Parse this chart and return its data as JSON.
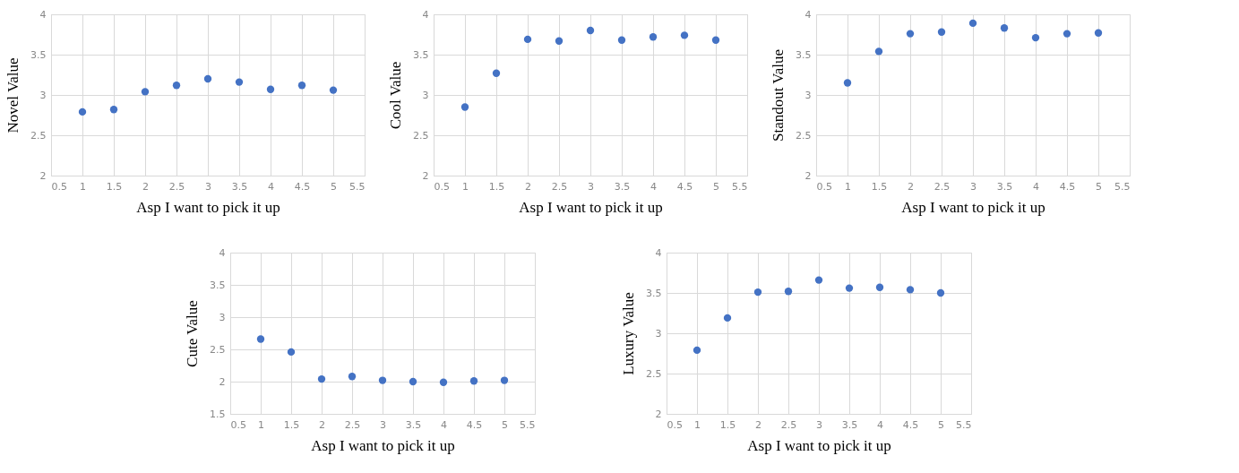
{
  "chart_data": [
    {
      "type": "scatter",
      "xlabel": "Asp I want to pick it up",
      "ylabel": "Novel Value",
      "x": [
        1,
        1.5,
        2,
        2.5,
        3,
        3.5,
        4,
        4.5,
        5
      ],
      "series": [
        {
          "color": "#4472c4",
          "values": [
            2.79,
            2.82,
            3.04,
            3.12,
            3.2,
            3.16,
            3.07,
            3.12,
            3.06
          ]
        }
      ],
      "xlim": [
        0.5,
        5.5
      ],
      "xticks": [
        0.5,
        1,
        1.5,
        2,
        2.5,
        3,
        3.5,
        4,
        4.5,
        5,
        5.5
      ],
      "ylim": [
        2,
        4
      ],
      "yticks": [
        2,
        2.5,
        3,
        3.5,
        4
      ],
      "grid": true,
      "marker": "circle"
    },
    {
      "type": "scatter",
      "xlabel": "Asp I want to pick it up",
      "ylabel": "Cool Value",
      "x": [
        1,
        1.5,
        2,
        2.5,
        3,
        3.5,
        4,
        4.5,
        5
      ],
      "series": [
        {
          "color": "#4472c4",
          "values": [
            2.85,
            3.27,
            3.69,
            3.67,
            3.8,
            3.68,
            3.72,
            3.74,
            3.68
          ]
        }
      ],
      "xlim": [
        0.5,
        5.5
      ],
      "xticks": [
        0.5,
        1,
        1.5,
        2,
        2.5,
        3,
        3.5,
        4,
        4.5,
        5,
        5.5
      ],
      "ylim": [
        2,
        4
      ],
      "yticks": [
        2,
        2.5,
        3,
        3.5,
        4
      ],
      "grid": true,
      "marker": "circle"
    },
    {
      "type": "scatter",
      "xlabel": "Asp I want to pick it up",
      "ylabel": "Standout Value",
      "x": [
        1,
        1.5,
        2,
        2.5,
        3,
        3.5,
        4,
        4.5,
        5
      ],
      "series": [
        {
          "color": "#4472c4",
          "values": [
            3.15,
            3.54,
            3.76,
            3.78,
            3.89,
            3.83,
            3.71,
            3.76,
            3.77
          ]
        }
      ],
      "xlim": [
        0.5,
        5.5
      ],
      "xticks": [
        0.5,
        1,
        1.5,
        2,
        2.5,
        3,
        3.5,
        4,
        4.5,
        5,
        5.5
      ],
      "ylim": [
        2,
        4
      ],
      "yticks": [
        2,
        2.5,
        3,
        3.5,
        4
      ],
      "grid": true,
      "marker": "circle"
    },
    {
      "type": "scatter",
      "xlabel": "Asp I want to pick it up",
      "ylabel": "Cute Value",
      "x": [
        1,
        1.5,
        2,
        2.5,
        3,
        3.5,
        4,
        4.5,
        5
      ],
      "series": [
        {
          "color": "#4472c4",
          "values": [
            2.66,
            2.46,
            2.04,
            2.08,
            2.02,
            2.0,
            1.99,
            2.01,
            2.02
          ]
        }
      ],
      "xlim": [
        0.5,
        5.5
      ],
      "xticks": [
        0.5,
        1,
        1.5,
        2,
        2.5,
        3,
        3.5,
        4,
        4.5,
        5,
        5.5
      ],
      "ylim": [
        1.5,
        4
      ],
      "yticks": [
        1.5,
        2,
        2.5,
        3,
        3.5,
        4
      ],
      "grid": true,
      "marker": "circle"
    },
    {
      "type": "scatter",
      "xlabel": "Asp I want to pick it up",
      "ylabel": "Luxury Value",
      "x": [
        1,
        1.5,
        2,
        2.5,
        3,
        3.5,
        4,
        4.5,
        5
      ],
      "series": [
        {
          "color": "#4472c4",
          "values": [
            2.79,
            3.19,
            3.51,
            3.52,
            3.66,
            3.56,
            3.57,
            3.54,
            3.5
          ]
        }
      ],
      "xlim": [
        0.5,
        5.5
      ],
      "xticks": [
        0.5,
        1,
        1.5,
        2,
        2.5,
        3,
        3.5,
        4,
        4.5,
        5,
        5.5
      ],
      "ylim": [
        2,
        4
      ],
      "yticks": [
        2,
        2.5,
        3,
        3.5,
        4
      ],
      "grid": true,
      "marker": "circle"
    }
  ]
}
